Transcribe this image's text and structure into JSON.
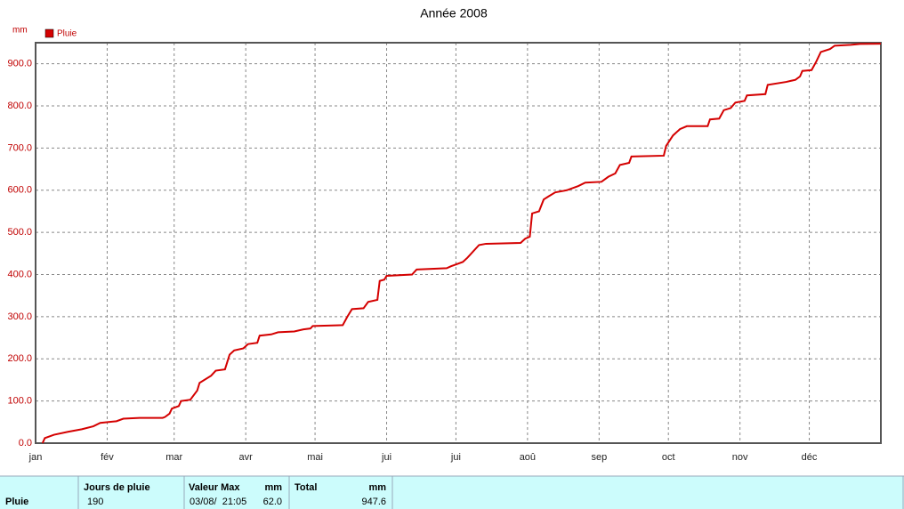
{
  "chart_data": {
    "type": "line",
    "title": "Année 2008",
    "y_unit": "mm",
    "legend": "top-left",
    "grid": true,
    "xlim": [
      0,
      366
    ],
    "ylim": [
      0,
      950
    ],
    "xticks": [
      {
        "value": 0,
        "label": "jan"
      },
      {
        "value": 31,
        "label": "fév"
      },
      {
        "value": 60,
        "label": "mar"
      },
      {
        "value": 91,
        "label": "avr"
      },
      {
        "value": 121,
        "label": "mai"
      },
      {
        "value": 152,
        "label": "jui"
      },
      {
        "value": 182,
        "label": "jui"
      },
      {
        "value": 213,
        "label": "aoû"
      },
      {
        "value": 244,
        "label": "sep"
      },
      {
        "value": 274,
        "label": "oct"
      },
      {
        "value": 305,
        "label": "nov"
      },
      {
        "value": 335,
        "label": "déc"
      }
    ],
    "yticks": [
      {
        "value": 0,
        "label": "0.0"
      },
      {
        "value": 100,
        "label": "100.0"
      },
      {
        "value": 200,
        "label": "200.0"
      },
      {
        "value": 300,
        "label": "300.0"
      },
      {
        "value": 400,
        "label": "400.0"
      },
      {
        "value": 500,
        "label": "500.0"
      },
      {
        "value": 600,
        "label": "600.0"
      },
      {
        "value": 700,
        "label": "700.0"
      },
      {
        "value": 800,
        "label": "800.0"
      },
      {
        "value": 900,
        "label": "900.0"
      }
    ],
    "x": [
      3,
      4,
      8,
      14,
      20,
      25,
      28,
      35,
      38,
      45,
      55,
      56,
      58,
      59,
      62,
      63,
      67,
      70,
      71,
      76,
      78,
      82,
      84,
      86,
      90,
      92,
      96,
      97,
      102,
      105,
      112,
      116,
      119,
      120,
      133,
      135,
      137,
      142,
      144,
      148,
      149,
      151,
      152,
      163,
      165,
      178,
      180,
      185,
      187,
      192,
      195,
      210,
      212,
      214,
      215,
      218,
      220,
      222,
      225,
      230,
      235,
      238,
      245,
      248,
      251,
      253,
      257,
      258,
      272,
      273,
      276,
      279,
      282,
      291,
      292,
      296,
      298,
      301,
      303,
      307,
      308,
      316,
      317,
      325,
      329,
      331,
      332,
      336,
      338,
      340,
      344,
      346,
      353,
      357,
      366
    ],
    "series": [
      {
        "name": "Pluie",
        "color": "#d40000",
        "values": [
          0,
          12,
          20,
          27,
          33,
          40,
          48,
          52,
          58,
          60,
          60,
          62,
          70,
          82,
          88,
          100,
          103,
          125,
          143,
          160,
          172,
          175,
          210,
          220,
          225,
          235,
          238,
          255,
          258,
          263,
          265,
          270,
          272,
          278,
          280,
          300,
          318,
          320,
          335,
          340,
          385,
          388,
          397,
          400,
          412,
          415,
          420,
          430,
          440,
          470,
          473,
          475,
          485,
          490,
          545,
          550,
          578,
          585,
          595,
          600,
          610,
          618,
          620,
          632,
          640,
          660,
          665,
          680,
          682,
          705,
          730,
          745,
          752,
          752,
          768,
          770,
          790,
          795,
          808,
          812,
          825,
          828,
          850,
          857,
          862,
          870,
          883,
          885,
          905,
          928,
          935,
          943,
          945,
          947,
          947.6
        ]
      }
    ]
  },
  "table": {
    "header": [
      "Jours de pluie",
      "Valeur Max",
      "mm",
      "Total",
      "mm"
    ],
    "row": [
      "Pluie",
      "190",
      "03/08/  21:05",
      "62.0",
      "947.6"
    ]
  }
}
